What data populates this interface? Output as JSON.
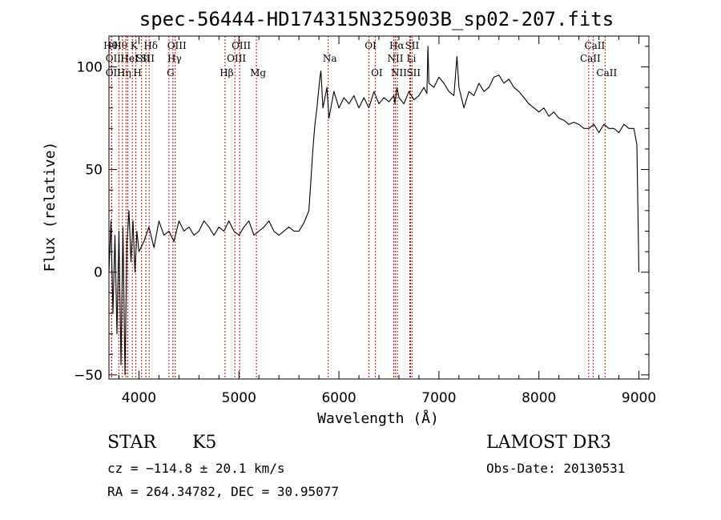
{
  "chart_data": {
    "type": "line",
    "title": "spec-56444-HD174315N325903B_sp02-207.fits",
    "xlabel": "Wavelength (Å)",
    "ylabel": "Flux (relative)",
    "xlim": [
      3700,
      9100
    ],
    "ylim": [
      -52,
      115
    ],
    "x_ticks": [
      4000,
      5000,
      6000,
      7000,
      8000,
      9000
    ],
    "x_tick_labels": [
      "4000",
      "5000",
      "6000",
      "7000",
      "8000",
      "9000"
    ],
    "y_ticks": [
      -50,
      0,
      50,
      100
    ],
    "y_tick_labels": [
      "−50",
      "0",
      "50",
      "100"
    ],
    "grid": false,
    "series": [
      {
        "color": "#000000",
        "x": [
          3700,
          3720,
          3740,
          3760,
          3780,
          3800,
          3820,
          3840,
          3860,
          3880,
          3900,
          3920,
          3940,
          3960,
          3980,
          4000,
          4050,
          4100,
          4150,
          4200,
          4250,
          4300,
          4350,
          4400,
          4450,
          4500,
          4550,
          4600,
          4650,
          4700,
          4750,
          4800,
          4850,
          4900,
          4950,
          5000,
          5050,
          5100,
          5150,
          5200,
          5250,
          5300,
          5350,
          5400,
          5450,
          5500,
          5550,
          5600,
          5650,
          5700,
          5720,
          5740,
          5760,
          5780,
          5800,
          5810,
          5820,
          5840,
          5860,
          5880,
          5900,
          5950,
          6000,
          6050,
          6100,
          6150,
          6200,
          6250,
          6300,
          6350,
          6400,
          6450,
          6500,
          6550,
          6560,
          6580,
          6600,
          6650,
          6700,
          6750,
          6800,
          6850,
          6880,
          6890,
          6900,
          6950,
          7000,
          7050,
          7100,
          7150,
          7180,
          7200,
          7250,
          7300,
          7350,
          7400,
          7450,
          7500,
          7550,
          7600,
          7650,
          7700,
          7750,
          7800,
          7850,
          7900,
          7950,
          8000,
          8050,
          8100,
          8150,
          8200,
          8250,
          8300,
          8350,
          8400,
          8450,
          8500,
          8550,
          8600,
          8650,
          8700,
          8750,
          8800,
          8850,
          8900,
          8950,
          8980,
          8990,
          9000
        ],
        "y": [
          0,
          25,
          -20,
          18,
          -30,
          20,
          -45,
          22,
          -50,
          15,
          30,
          5,
          25,
          0,
          20,
          10,
          15,
          22,
          12,
          25,
          18,
          20,
          15,
          25,
          20,
          22,
          18,
          20,
          25,
          22,
          18,
          22,
          20,
          25,
          20,
          18,
          22,
          25,
          18,
          20,
          22,
          25,
          20,
          18,
          20,
          22,
          20,
          20,
          24,
          30,
          45,
          60,
          72,
          80,
          90,
          95,
          98,
          80,
          85,
          90,
          75,
          88,
          80,
          85,
          82,
          86,
          80,
          85,
          80,
          88,
          82,
          85,
          83,
          86,
          82,
          90,
          85,
          82,
          88,
          84,
          86,
          90,
          87,
          110,
          92,
          90,
          95,
          92,
          88,
          86,
          105,
          90,
          80,
          88,
          86,
          92,
          88,
          90,
          95,
          96,
          92,
          94,
          90,
          88,
          85,
          82,
          80,
          78,
          80,
          76,
          78,
          75,
          74,
          72,
          73,
          72,
          70,
          70,
          72,
          68,
          72,
          70,
          70,
          68,
          72,
          70,
          70,
          62,
          30,
          0
        ]
      }
    ],
    "lines": [
      {
        "x": 3700,
        "row": 0,
        "label": "Hθ"
      },
      {
        "x": 3727,
        "row": 1,
        "label": "OII"
      },
      {
        "x": 3727,
        "row": 2,
        "label": "OII"
      },
      {
        "x": 3798,
        "row": 0,
        "label": "Hθ"
      },
      {
        "x": 3835,
        "row": 2,
        "label": "Hη"
      },
      {
        "x": 3870,
        "row": 1,
        "label": "He"
      },
      {
        "x": 3889,
        "row": 1,
        "label": "HeI"
      },
      {
        "x": 3934,
        "row": 0,
        "label": "K"
      },
      {
        "x": 3969,
        "row": 2,
        "label": "H"
      },
      {
        "x": 4026,
        "row": 1,
        "label": "SII"
      },
      {
        "x": 4070,
        "row": 1,
        "label": "SII"
      },
      {
        "x": 4102,
        "row": 0,
        "label": "Hδ"
      },
      {
        "x": 4300,
        "row": 2,
        "label": "G"
      },
      {
        "x": 4340,
        "row": 1,
        "label": "Hγ"
      },
      {
        "x": 4363,
        "row": 0,
        "label": "OIII"
      },
      {
        "x": 4861,
        "row": 2,
        "label": "Hβ"
      },
      {
        "x": 4959,
        "row": 1,
        "label": "OIII"
      },
      {
        "x": 5007,
        "row": 0,
        "label": "OIII"
      },
      {
        "x": 5175,
        "row": 2,
        "label": "Mg"
      },
      {
        "x": 5893,
        "row": 1,
        "label": "Na"
      },
      {
        "x": 6300,
        "row": 0,
        "label": "OI"
      },
      {
        "x": 6363,
        "row": 2,
        "label": "OI"
      },
      {
        "x": 6548,
        "row": 1,
        "label": "NII"
      },
      {
        "x": 6563,
        "row": 0,
        "label": "Hα"
      },
      {
        "x": 6584,
        "row": 2,
        "label": "NII"
      },
      {
        "x": 6708,
        "row": 1,
        "label": "Li"
      },
      {
        "x": 6716,
        "row": 0,
        "label": "SII"
      },
      {
        "x": 6731,
        "row": 2,
        "label": "SII"
      },
      {
        "x": 8498,
        "row": 1,
        "label": "CaII"
      },
      {
        "x": 8542,
        "row": 0,
        "label": "CaII"
      },
      {
        "x": 8662,
        "row": 2,
        "label": "CaII"
      }
    ]
  },
  "info": {
    "object_class": "STAR",
    "subclass": "K5",
    "survey": "LAMOST DR3",
    "redshift": "cz = −114.8 ± 20.1 km/s",
    "obs_date": "Obs-Date: 20130531",
    "coords": "RA = 264.34782, DEC =  30.95077"
  }
}
